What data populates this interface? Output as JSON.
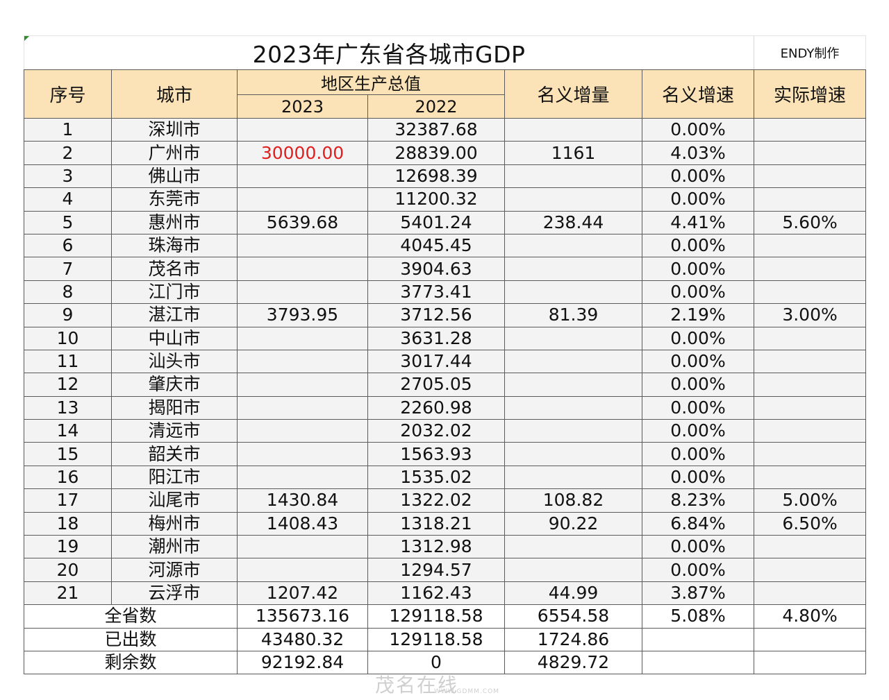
{
  "title": "2023年广东省各城市GDP",
  "author": "ENDY制作",
  "headers": {
    "index": "序号",
    "city": "城市",
    "gdp_group": "地区生产总值",
    "year_2023": "2023",
    "year_2022": "2022",
    "nominal_increase": "名义增量",
    "nominal_growth": "名义增速",
    "real_growth": "实际增速"
  },
  "rows": [
    {
      "no": "1",
      "city": "深圳市",
      "gdp2023": "",
      "gdp2022": "32387.68",
      "increase": "",
      "nominal": "0.00%",
      "real": ""
    },
    {
      "no": "2",
      "city": "广州市",
      "gdp2023": "30000.00",
      "gdp2022": "28839.00",
      "increase": "1161",
      "nominal": "4.03%",
      "real": ""
    },
    {
      "no": "3",
      "city": "佛山市",
      "gdp2023": "",
      "gdp2022": "12698.39",
      "increase": "",
      "nominal": "0.00%",
      "real": ""
    },
    {
      "no": "4",
      "city": "东莞市",
      "gdp2023": "",
      "gdp2022": "11200.32",
      "increase": "",
      "nominal": "0.00%",
      "real": ""
    },
    {
      "no": "5",
      "city": "惠州市",
      "gdp2023": "5639.68",
      "gdp2022": "5401.24",
      "increase": "238.44",
      "nominal": "4.41%",
      "real": "5.60%"
    },
    {
      "no": "6",
      "city": "珠海市",
      "gdp2023": "",
      "gdp2022": "4045.45",
      "increase": "",
      "nominal": "0.00%",
      "real": ""
    },
    {
      "no": "7",
      "city": "茂名市",
      "gdp2023": "",
      "gdp2022": "3904.63",
      "increase": "",
      "nominal": "0.00%",
      "real": ""
    },
    {
      "no": "8",
      "city": "江门市",
      "gdp2023": "",
      "gdp2022": "3773.41",
      "increase": "",
      "nominal": "0.00%",
      "real": ""
    },
    {
      "no": "9",
      "city": "湛江市",
      "gdp2023": "3793.95",
      "gdp2022": "3712.56",
      "increase": "81.39",
      "nominal": "2.19%",
      "real": "3.00%"
    },
    {
      "no": "10",
      "city": "中山市",
      "gdp2023": "",
      "gdp2022": "3631.28",
      "increase": "",
      "nominal": "0.00%",
      "real": ""
    },
    {
      "no": "11",
      "city": "汕头市",
      "gdp2023": "",
      "gdp2022": "3017.44",
      "increase": "",
      "nominal": "0.00%",
      "real": ""
    },
    {
      "no": "12",
      "city": "肇庆市",
      "gdp2023": "",
      "gdp2022": "2705.05",
      "increase": "",
      "nominal": "0.00%",
      "real": ""
    },
    {
      "no": "13",
      "city": "揭阳市",
      "gdp2023": "",
      "gdp2022": "2260.98",
      "increase": "",
      "nominal": "0.00%",
      "real": ""
    },
    {
      "no": "14",
      "city": "清远市",
      "gdp2023": "",
      "gdp2022": "2032.02",
      "increase": "",
      "nominal": "0.00%",
      "real": ""
    },
    {
      "no": "15",
      "city": "韶关市",
      "gdp2023": "",
      "gdp2022": "1563.93",
      "increase": "",
      "nominal": "0.00%",
      "real": ""
    },
    {
      "no": "16",
      "city": "阳江市",
      "gdp2023": "",
      "gdp2022": "1535.02",
      "increase": "",
      "nominal": "0.00%",
      "real": ""
    },
    {
      "no": "17",
      "city": "汕尾市",
      "gdp2023": "1430.84",
      "gdp2022": "1322.02",
      "increase": "108.82",
      "nominal": "8.23%",
      "real": "5.00%"
    },
    {
      "no": "18",
      "city": "梅州市",
      "gdp2023": "1408.43",
      "gdp2022": "1318.21",
      "increase": "90.22",
      "nominal": "6.84%",
      "real": "6.50%"
    },
    {
      "no": "19",
      "city": "潮州市",
      "gdp2023": "",
      "gdp2022": "1312.98",
      "increase": "",
      "nominal": "0.00%",
      "real": ""
    },
    {
      "no": "20",
      "city": "河源市",
      "gdp2023": "",
      "gdp2022": "1294.57",
      "increase": "",
      "nominal": "0.00%",
      "real": ""
    },
    {
      "no": "21",
      "city": "云浮市",
      "gdp2023": "1207.42",
      "gdp2022": "1162.43",
      "increase": "44.99",
      "nominal": "3.87%",
      "real": ""
    }
  ],
  "summary": [
    {
      "label": "全省数",
      "gdp2023": "135673.16",
      "gdp2022": "129118.58",
      "increase": "6554.58",
      "nominal": "5.08%",
      "real": "4.80%"
    },
    {
      "label": "已出数",
      "gdp2023": "43480.32",
      "gdp2022": "129118.58",
      "increase": "1724.86",
      "nominal": "",
      "real": ""
    },
    {
      "label": "剩余数",
      "gdp2023": "92192.84",
      "gdp2022": "0",
      "increase": "4829.72",
      "nominal": "",
      "real": ""
    }
  ],
  "highlight": {
    "row": 1,
    "field": "gdp2023",
    "color": "#e02020"
  },
  "header_bg": "#fbe3b7",
  "watermark": {
    "text": "茂名在线",
    "url": "WWW.GDMM.COM"
  }
}
